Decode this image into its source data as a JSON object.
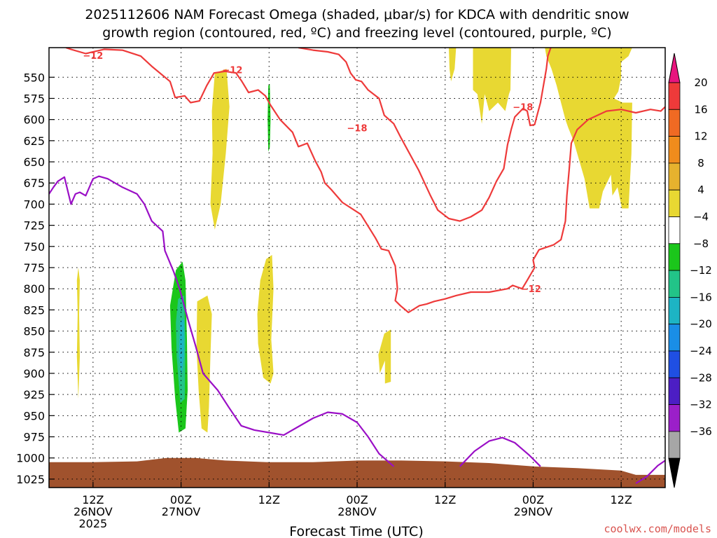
{
  "chart_data": {
    "type": "heatmap",
    "title_line1": "2025112606 NAM Forecast Omega (shaded, μbar/s) for KDCA with dendritic snow",
    "title_line2": "growth region (contoured, red, ºC) and freezing level (contoured, purple, ºC)",
    "xlabel": "Forecast Time (UTC)",
    "credit": "coolwx.com/models",
    "y_axis": {
      "scale": "pressure",
      "inverted": true,
      "ylim": [
        1035,
        515
      ],
      "ticks": [
        550,
        575,
        600,
        625,
        650,
        675,
        700,
        725,
        750,
        775,
        800,
        825,
        850,
        875,
        900,
        925,
        950,
        975,
        1000,
        1025
      ]
    },
    "x_axis": {
      "unit": "forecast hour",
      "xlim": [
        0,
        84
      ],
      "ticks": [
        {
          "x": 6,
          "line1": "12Z",
          "line2": "26NOV",
          "line3": "2025"
        },
        {
          "x": 18,
          "line1": "00Z",
          "line2": "27NOV",
          "line3": ""
        },
        {
          "x": 30,
          "line1": "12Z",
          "line2": "",
          "line3": ""
        },
        {
          "x": 42,
          "line1": "00Z",
          "line2": "28NOV",
          "line3": ""
        },
        {
          "x": 54,
          "line1": "12Z",
          "line2": "",
          "line3": ""
        },
        {
          "x": 66,
          "line1": "00Z",
          "line2": "29NOV",
          "line3": ""
        },
        {
          "x": 78,
          "line1": "12Z",
          "line2": "",
          "line3": ""
        }
      ]
    },
    "grid": true,
    "colorbar": {
      "labels": [
        "20",
        "16",
        "12",
        "8",
        "4",
        "−4",
        "−8",
        "−12",
        "−16",
        "−20",
        "−24",
        "−28",
        "−32",
        "−36"
      ],
      "top_cap": "#e8157e",
      "bottom_cap": "#000000",
      "bands": [
        "#ee3a3a",
        "#f06a23",
        "#f08c1c",
        "#e6b22e",
        "#e8d832",
        "#ffffff",
        "#1bc61b",
        "#22c488",
        "#1db4c4",
        "#1a8ee6",
        "#1f4fe3",
        "#4c1ec4",
        "#9b1fc9",
        "#a6a6a6"
      ]
    },
    "omega_regions": [
      {
        "color": "#e8d832",
        "value": 4,
        "points": [
          [
            4.0,
            775
          ],
          [
            4.2,
            790
          ],
          [
            4.1,
            830
          ],
          [
            4.2,
            880
          ],
          [
            4.0,
            930
          ],
          [
            3.8,
            880
          ],
          [
            3.9,
            830
          ],
          [
            3.8,
            790
          ]
        ]
      },
      {
        "color": "#e8d832",
        "value": 4,
        "points": [
          [
            22.6,
            545
          ],
          [
            24.2,
            540
          ],
          [
            24.6,
            585
          ],
          [
            24.1,
            640
          ],
          [
            23.4,
            700
          ],
          [
            22.6,
            730
          ],
          [
            22.0,
            700
          ],
          [
            22.3,
            640
          ],
          [
            22.2,
            590
          ]
        ]
      },
      {
        "color": "#e8d832",
        "value": 4,
        "points": [
          [
            20.2,
            815
          ],
          [
            21.6,
            808
          ],
          [
            22.2,
            830
          ],
          [
            22.0,
            880
          ],
          [
            21.8,
            940
          ],
          [
            21.6,
            970
          ],
          [
            20.8,
            965
          ],
          [
            20.4,
            920
          ],
          [
            20.1,
            870
          ]
        ]
      },
      {
        "color": "#e8d832",
        "value": 4,
        "points": [
          [
            29.6,
            765
          ],
          [
            30.4,
            760
          ],
          [
            30.6,
            800
          ],
          [
            30.3,
            860
          ],
          [
            30.6,
            900
          ],
          [
            30.2,
            912
          ],
          [
            29.2,
            905
          ],
          [
            28.5,
            865
          ],
          [
            28.4,
            830
          ],
          [
            28.8,
            790
          ]
        ]
      },
      {
        "color": "#e8d832",
        "value": 4,
        "points": [
          [
            45.7,
            853
          ],
          [
            46.6,
            848
          ],
          [
            46.6,
            910
          ],
          [
            45.8,
            912
          ],
          [
            45.8,
            885
          ],
          [
            45.1,
            900
          ],
          [
            44.9,
            878
          ]
        ]
      },
      {
        "color": "#e8d832",
        "value": 4,
        "points": [
          [
            54.5,
            515
          ],
          [
            55.5,
            515
          ],
          [
            55.3,
            540
          ],
          [
            54.8,
            555
          ],
          [
            54.6,
            540
          ]
        ]
      },
      {
        "color": "#e8d832",
        "value": 4,
        "points": [
          [
            57.8,
            515
          ],
          [
            63.0,
            515
          ],
          [
            62.9,
            565
          ],
          [
            62.7,
            570
          ],
          [
            62.2,
            590
          ],
          [
            61.2,
            580
          ],
          [
            60.0,
            590
          ],
          [
            59.4,
            570
          ],
          [
            59.0,
            605
          ],
          [
            58.4,
            570
          ],
          [
            57.8,
            565
          ]
        ]
      },
      {
        "color": "#e8d832",
        "value": 4,
        "points": [
          [
            67.6,
            515
          ],
          [
            79.5,
            515
          ],
          [
            79.0,
            525
          ],
          [
            78.0,
            532
          ],
          [
            78.0,
            550
          ],
          [
            77.6,
            567
          ],
          [
            77.0,
            575
          ],
          [
            78.2,
            580
          ],
          [
            79.5,
            580
          ],
          [
            79.4,
            640
          ],
          [
            79.0,
            705
          ],
          [
            78.1,
            705
          ],
          [
            77.5,
            680
          ],
          [
            76.8,
            690
          ],
          [
            76.6,
            665
          ],
          [
            75.5,
            685
          ],
          [
            75.0,
            705
          ],
          [
            73.7,
            705
          ],
          [
            73.0,
            670
          ],
          [
            72.0,
            640
          ],
          [
            71.5,
            625
          ],
          [
            70.8,
            610
          ],
          [
            70.4,
            600
          ],
          [
            69.8,
            580
          ],
          [
            69.2,
            560
          ],
          [
            68.5,
            540
          ],
          [
            67.8,
            525
          ]
        ]
      },
      {
        "color": "#1bc61b",
        "value": -4,
        "points": [
          [
            29.9,
            560
          ],
          [
            30.1,
            558
          ],
          [
            30.2,
            600
          ],
          [
            30.1,
            633
          ],
          [
            29.9,
            638
          ],
          [
            29.8,
            600
          ]
        ]
      },
      {
        "color": "#1bc61b",
        "value": -4,
        "points": [
          [
            17.3,
            778
          ],
          [
            18.2,
            768
          ],
          [
            18.6,
            790
          ],
          [
            18.8,
            860
          ],
          [
            18.9,
            920
          ],
          [
            18.6,
            965
          ],
          [
            17.7,
            970
          ],
          [
            17.2,
            930
          ],
          [
            16.7,
            870
          ],
          [
            16.5,
            820
          ]
        ]
      },
      {
        "color": "#22c488",
        "value": -8,
        "points": [
          [
            17.6,
            812
          ],
          [
            18.4,
            808
          ],
          [
            18.6,
            860
          ],
          [
            18.5,
            930
          ],
          [
            17.9,
            935
          ],
          [
            17.4,
            880
          ],
          [
            17.3,
            840
          ]
        ]
      },
      {
        "color": "#1db4c4",
        "value": -12,
        "points": [
          [
            17.9,
            838
          ],
          [
            18.4,
            836
          ],
          [
            18.4,
            880
          ],
          [
            18.1,
            902
          ],
          [
            17.7,
            880
          ]
        ]
      }
    ],
    "freezing_level_purple": [
      [
        0,
        688
      ],
      [
        0.6,
        680
      ],
      [
        1.2,
        673
      ],
      [
        2.1,
        668
      ],
      [
        3.0,
        700
      ],
      [
        3.6,
        688
      ],
      [
        4.2,
        686
      ],
      [
        5.0,
        690
      ],
      [
        6.0,
        670
      ],
      [
        6.8,
        667
      ],
      [
        8.0,
        670
      ],
      [
        10.0,
        680
      ],
      [
        12.0,
        688
      ],
      [
        13.0,
        700
      ],
      [
        14.0,
        720
      ],
      [
        15.5,
        732
      ],
      [
        15.8,
        755
      ],
      [
        17.0,
        780
      ],
      [
        17.8,
        800
      ],
      [
        19.0,
        838
      ],
      [
        20.0,
        868
      ],
      [
        21.0,
        900
      ],
      [
        23.0,
        920
      ],
      [
        24.5,
        940
      ],
      [
        26.2,
        962
      ],
      [
        28.0,
        967
      ],
      [
        30.0,
        970
      ],
      [
        32.0,
        973
      ],
      [
        34.0,
        963
      ],
      [
        36.0,
        953
      ],
      [
        38.0,
        946
      ],
      [
        40.0,
        948
      ],
      [
        42.0,
        958
      ],
      [
        43.5,
        975
      ],
      [
        45.0,
        995
      ],
      [
        47.0,
        1010
      ]
    ],
    "freezing_level_purple_2": [
      [
        56,
        1010
      ],
      [
        58,
        992
      ],
      [
        60,
        980
      ],
      [
        61.8,
        976
      ],
      [
        63.5,
        982
      ],
      [
        65.5,
        997
      ],
      [
        67.0,
        1010
      ]
    ],
    "freezing_level_purple_3": [
      [
        80,
        1030
      ],
      [
        81.5,
        1022
      ],
      [
        83.0,
        1009
      ],
      [
        84,
        1003
      ]
    ],
    "dgz_red_upper": [
      [
        2.3,
        515
      ],
      [
        3.0,
        517
      ],
      [
        5.0,
        522
      ],
      [
        7.5,
        517
      ],
      [
        10.0,
        518
      ],
      [
        12.5,
        525
      ],
      [
        14.0,
        537
      ],
      [
        16.5,
        555
      ],
      [
        17.2,
        574
      ],
      [
        18.5,
        572
      ],
      [
        19.3,
        580
      ],
      [
        20.5,
        578
      ],
      [
        21.5,
        560
      ],
      [
        22.5,
        545
      ],
      [
        24.0,
        543
      ],
      [
        25.5,
        545
      ],
      [
        26.3,
        555
      ],
      [
        27.2,
        568
      ],
      [
        28.5,
        565
      ],
      [
        29.5,
        572
      ],
      [
        30.2,
        583
      ],
      [
        31.5,
        600
      ],
      [
        33.2,
        615
      ],
      [
        34.0,
        632
      ],
      [
        35.2,
        628
      ],
      [
        36.3,
        649
      ],
      [
        37.1,
        662
      ],
      [
        37.6,
        675
      ],
      [
        38.5,
        683
      ],
      [
        40.0,
        698
      ],
      [
        42.5,
        712
      ],
      [
        44.5,
        740
      ],
      [
        45.3,
        753
      ],
      [
        46.3,
        755
      ],
      [
        47.2,
        773
      ],
      [
        47.5,
        800
      ],
      [
        47.2,
        814
      ],
      [
        47.9,
        820
      ],
      [
        49.0,
        828
      ],
      [
        50.5,
        820
      ],
      [
        51.5,
        818
      ],
      [
        52.5,
        815
      ],
      [
        54.0,
        812
      ],
      [
        55.5,
        808
      ],
      [
        57.5,
        804
      ],
      [
        60.0,
        804
      ],
      [
        62.5,
        800
      ],
      [
        63.2,
        796
      ],
      [
        64.5,
        800
      ],
      [
        65.2,
        790
      ],
      [
        66.2,
        775
      ],
      [
        66.0,
        766
      ],
      [
        66.8,
        754
      ],
      [
        68.8,
        748
      ],
      [
        69.8,
        742
      ],
      [
        70.4,
        720
      ],
      [
        70.6,
        690
      ],
      [
        70.9,
        660
      ],
      [
        71.2,
        628
      ],
      [
        72.0,
        612
      ],
      [
        73.5,
        600
      ],
      [
        76.0,
        590
      ],
      [
        78.0,
        588
      ],
      [
        80.0,
        592
      ],
      [
        82.0,
        588
      ],
      [
        83.4,
        590
      ],
      [
        84.0,
        585
      ]
    ],
    "dgz_red_lower": [
      [
        34.0,
        515
      ],
      [
        36.0,
        518
      ],
      [
        38.0,
        520
      ],
      [
        39.5,
        523
      ],
      [
        40.5,
        532
      ],
      [
        41.1,
        545
      ],
      [
        41.8,
        553
      ],
      [
        42.6,
        555
      ],
      [
        43.5,
        565
      ],
      [
        45.0,
        575
      ],
      [
        45.7,
        595
      ],
      [
        47.0,
        605
      ],
      [
        48.0,
        622
      ],
      [
        50.4,
        660
      ],
      [
        52.0,
        690
      ],
      [
        53.0,
        707
      ],
      [
        54.5,
        717
      ],
      [
        56.0,
        720
      ],
      [
        57.5,
        715
      ],
      [
        59.0,
        707
      ],
      [
        60.0,
        692
      ],
      [
        61.0,
        673
      ],
      [
        62.0,
        658
      ],
      [
        62.5,
        630
      ],
      [
        63.0,
        612
      ],
      [
        63.5,
        597
      ],
      [
        64.6,
        587
      ],
      [
        65.2,
        590
      ],
      [
        65.6,
        607
      ],
      [
        66.2,
        606
      ],
      [
        67.0,
        580
      ],
      [
        67.8,
        540
      ],
      [
        68.0,
        525
      ],
      [
        68.4,
        515
      ]
    ],
    "contour_labels": [
      {
        "text": "−12",
        "x": 6.0,
        "p": 524
      },
      {
        "text": "−12",
        "x": 25.0,
        "p": 541
      },
      {
        "text": "−18",
        "x": 42.0,
        "p": 610
      },
      {
        "text": "−18",
        "x": 64.6,
        "p": 585
      },
      {
        "text": "−12",
        "x": 65.7,
        "p": 800
      }
    ],
    "ground": [
      [
        0,
        1005
      ],
      [
        6,
        1005
      ],
      [
        12,
        1004
      ],
      [
        16,
        1000
      ],
      [
        20,
        1000
      ],
      [
        24,
        1003
      ],
      [
        30,
        1005
      ],
      [
        36,
        1005
      ],
      [
        42,
        1003
      ],
      [
        48,
        1003
      ],
      [
        54,
        1004
      ],
      [
        60,
        1006
      ],
      [
        66,
        1010
      ],
      [
        72,
        1012
      ],
      [
        78,
        1015
      ],
      [
        80,
        1020
      ],
      [
        84,
        1020
      ]
    ],
    "ground_color": "#a0522d"
  }
}
